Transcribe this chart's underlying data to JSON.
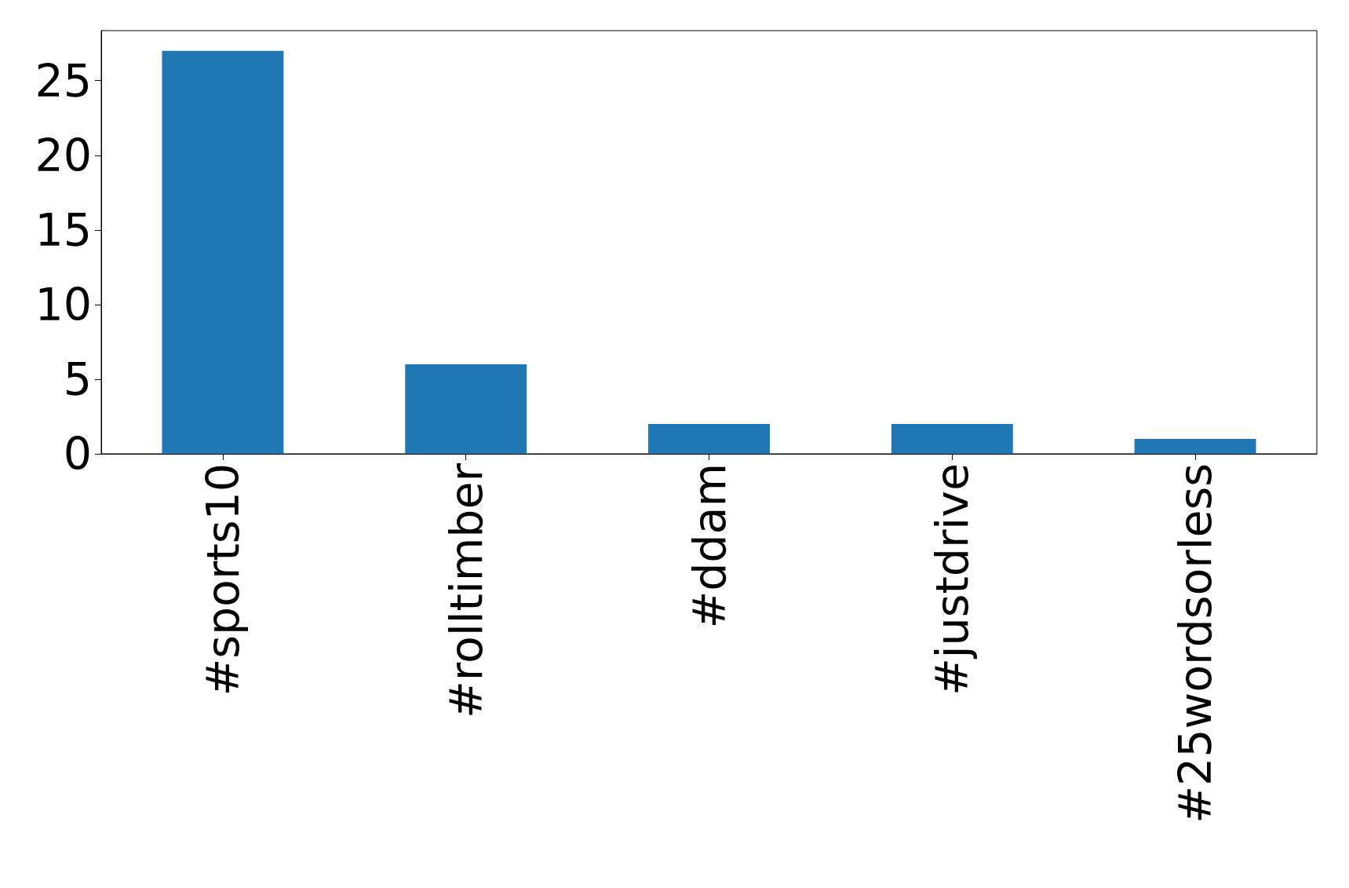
{
  "chart_data": {
    "type": "bar",
    "categories": [
      "#sports10",
      "#rolltimber",
      "#ddam",
      "#justdrive",
      "#25wordsorless"
    ],
    "values": [
      27,
      6,
      2,
      2,
      1
    ],
    "color": "#1f77b4",
    "ylim": [
      0,
      28.35
    ],
    "yticks": [
      0,
      5,
      10,
      15,
      20,
      25
    ],
    "grid": false
  }
}
